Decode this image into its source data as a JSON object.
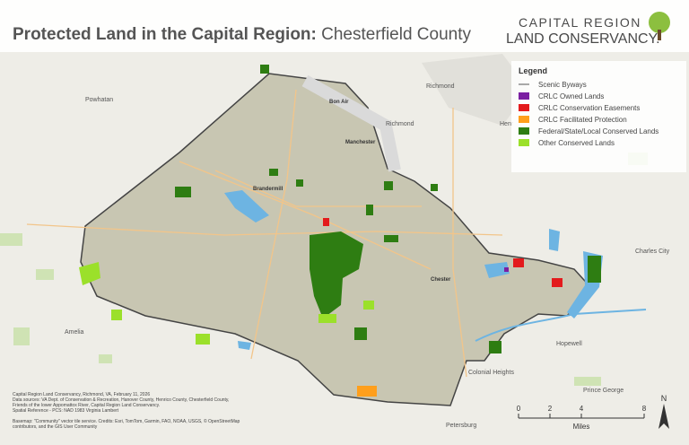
{
  "header": {
    "title_bold": "Protected Land in the Capital Region:",
    "title_rest": "Chesterfield County"
  },
  "logo": {
    "line1": "CAPITAL REGION",
    "line2": "LAND CONSERVANCY."
  },
  "legend": {
    "title": "Legend",
    "items": [
      {
        "label": "Scenic Byways",
        "color": "#555555",
        "symbol": "line"
      },
      {
        "label": "CRLC Owned Lands",
        "color": "#7b1fa2",
        "symbol": "box"
      },
      {
        "label": "CRLC Conservation Easements",
        "color": "#e31a1c",
        "symbol": "box"
      },
      {
        "label": "CRLC Facilitated Protection",
        "color": "#ff9f1c",
        "symbol": "box"
      },
      {
        "label": "Federal/State/Local Conserved Lands",
        "color": "#2e7d12",
        "symbol": "box"
      },
      {
        "label": "Other Conserved Lands",
        "color": "#9be02a",
        "symbol": "box"
      }
    ]
  },
  "places": {
    "powhatan": "Powhatan",
    "richmond_north": "Richmond",
    "richmond": "Richmond",
    "henrico": "Henr",
    "bon_air": "Bon Air",
    "manchester": "Manchester",
    "brandermill": "Brandermill",
    "chester": "Chester",
    "charles_city": "Charles City",
    "hopewell": "Hopewell",
    "colonial_heights": "Colonial Heights",
    "prince_george": "Prince George",
    "petersburg": "Petersburg",
    "amelia": "Amelia"
  },
  "credits": [
    "Capital Region Land Conservancy, Richmond, VA, February 11, 2026",
    "Data sources: VA Dept. of Conservation & Recreation, Hanover County, Henrico County, Chesterfield County,",
    "Friends of the lower Appomattox River, Capital Region Land Conservancy.",
    "Spatial Reference - PCS: NAD 1983 Virginia Lambert"
  ],
  "basemap": [
    "Basemap: \"Community\" vector tile service. Credits: Esri, TomTom, Garmin, FAO, NOAA, USGS, © OpenStreetMap",
    "contributors, and the GIS User Community"
  ],
  "scale": {
    "ticks": [
      0,
      2,
      4,
      8
    ],
    "unit": "Miles"
  },
  "north": "N"
}
